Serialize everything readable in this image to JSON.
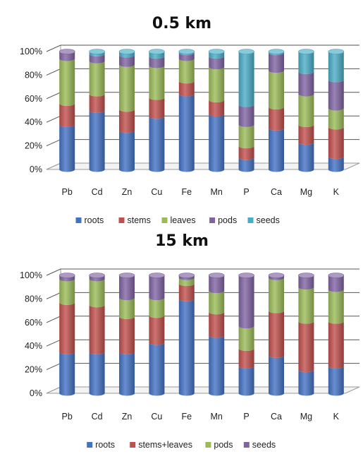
{
  "chart_data": [
    {
      "type": "bar",
      "stacked": "percent",
      "title": "0.5 km",
      "categories": [
        "Pb",
        "Cd",
        "Zn",
        "Cu",
        "Fe",
        "Mn",
        "P",
        "Ca",
        "Mg",
        "K"
      ],
      "y_ticks": [
        "0%",
        "20%",
        "40%",
        "60%",
        "80%",
        "100%"
      ],
      "ylim": [
        0,
        100
      ],
      "grid": true,
      "legend_position": "bottom",
      "series": [
        {
          "name": "roots",
          "color": "#4472C4",
          "values": [
            38,
            50,
            33,
            45,
            64,
            47,
            10,
            35,
            23,
            11
          ]
        },
        {
          "name": "stems",
          "color": "#C0504D",
          "values": [
            18,
            14,
            18,
            16,
            11,
            12,
            10,
            18,
            15,
            25
          ]
        },
        {
          "name": "leaves",
          "color": "#9BBB59",
          "values": [
            38,
            28,
            38,
            27,
            19,
            28,
            18,
            31,
            26,
            16
          ]
        },
        {
          "name": "pods",
          "color": "#8064A2",
          "values": [
            6,
            6,
            8,
            8,
            5,
            9,
            17,
            15,
            19,
            24
          ]
        },
        {
          "name": "seeds",
          "color": "#4BACC6",
          "values": [
            0,
            2,
            3,
            4,
            1,
            4,
            45,
            1,
            17,
            24
          ]
        }
      ]
    },
    {
      "type": "bar",
      "stacked": "percent",
      "title": "15 km",
      "categories": [
        "Pb",
        "Cd",
        "Zn",
        "Cu",
        "Fe",
        "Mn",
        "P",
        "Ca",
        "Mg",
        "K"
      ],
      "y_ticks": [
        "0%",
        "20%",
        "40%",
        "60%",
        "80%",
        "100%"
      ],
      "ylim": [
        0,
        100
      ],
      "grid": true,
      "legend_position": "bottom",
      "series": [
        {
          "name": "roots",
          "color": "#4472C4",
          "values": [
            35,
            35,
            35,
            43,
            80,
            49,
            23,
            32,
            20,
            23
          ]
        },
        {
          "name": "stems+leaves",
          "color": "#C0504D",
          "values": [
            42,
            40,
            30,
            23,
            13,
            20,
            15,
            38,
            41,
            38
          ]
        },
        {
          "name": "pods",
          "color": "#9BBB59",
          "values": [
            20,
            22,
            16,
            15,
            5,
            18,
            19,
            28,
            29,
            27
          ]
        },
        {
          "name": "seeds",
          "color": "#8064A2",
          "values": [
            3,
            3,
            19,
            19,
            2,
            13,
            43,
            2,
            10,
            12
          ]
        }
      ]
    }
  ]
}
